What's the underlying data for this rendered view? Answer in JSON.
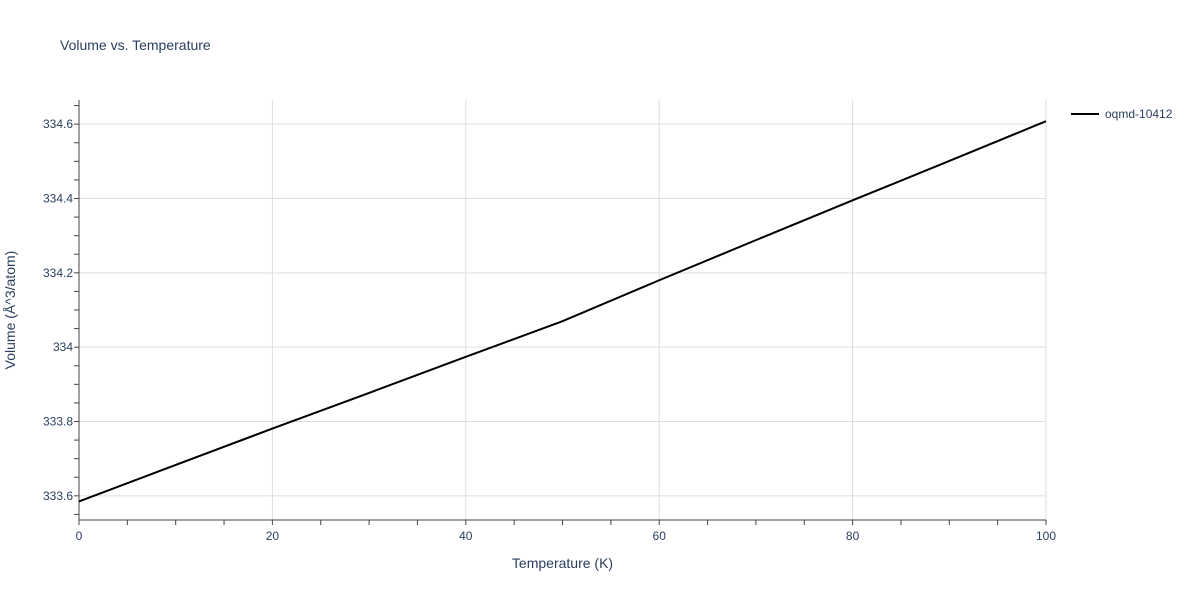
{
  "chart_data": {
    "type": "line",
    "title": "Volume vs. Temperature",
    "xlabel": "Temperature (K)",
    "ylabel": "Volume (Å^3/atom)",
    "xlim": [
      0,
      100
    ],
    "ylim": [
      333.535,
      334.665
    ],
    "xticks": [
      0,
      20,
      40,
      60,
      80,
      100
    ],
    "xtick_labels": [
      "0",
      "20",
      "40",
      "60",
      "80",
      "100"
    ],
    "yticks": [
      333.6,
      333.8,
      334.0,
      334.2,
      334.4,
      334.6
    ],
    "ytick_labels": [
      "333.6",
      "333.8",
      "334",
      "334.2",
      "334.4",
      "334.6"
    ],
    "grid": true,
    "legend_position": "top-right",
    "series": [
      {
        "name": "oqmd-10412",
        "color": "#000000",
        "x": [
          0,
          10,
          20,
          30,
          40,
          50,
          60,
          70,
          80,
          90,
          100
        ],
        "y": [
          333.585,
          333.683,
          333.781,
          333.877,
          333.974,
          334.07,
          334.18,
          334.288,
          334.395,
          334.501,
          334.608
        ]
      }
    ]
  }
}
